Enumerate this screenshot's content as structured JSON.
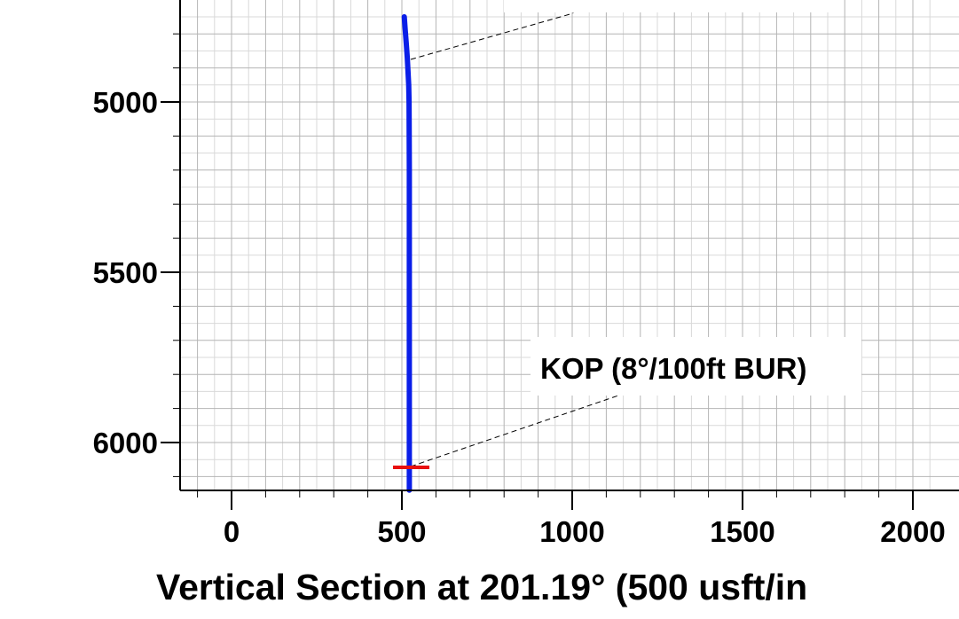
{
  "chart_data": {
    "type": "line",
    "title": "",
    "xlabel": "Vertical Section at 201.19° (500 usft/in",
    "ylabel": "",
    "xlim": [
      -150,
      2050
    ],
    "ylim": [
      4750,
      6140
    ],
    "y_inverted": true,
    "x_ticks": [
      0,
      500,
      1000,
      1500,
      2000
    ],
    "x_tick_labels": [
      "0",
      "500",
      "1000",
      "1500",
      "2000"
    ],
    "y_ticks": [
      5000,
      5500,
      6000
    ],
    "y_tick_labels": [
      "5000",
      "5500",
      "6000"
    ],
    "grid": true,
    "series": [
      {
        "color": "#0a1ee8",
        "x": [
          507,
          510,
          513,
          516,
          518,
          520,
          521,
          522,
          522,
          522,
          522
        ],
        "y": [
          4750,
          4790,
          4830,
          4870,
          4910,
          4950,
          5000,
          5200,
          5600,
          6000,
          6140
        ]
      }
    ],
    "annotations": [
      {
        "text": "KOP (8°/100ft BUR)",
        "marker_color": "#e81010",
        "marker_x": [
          480,
          580
        ],
        "marker_y": 6070
      },
      {
        "text": "",
        "point_x": 522,
        "point_y": 4880
      }
    ]
  }
}
